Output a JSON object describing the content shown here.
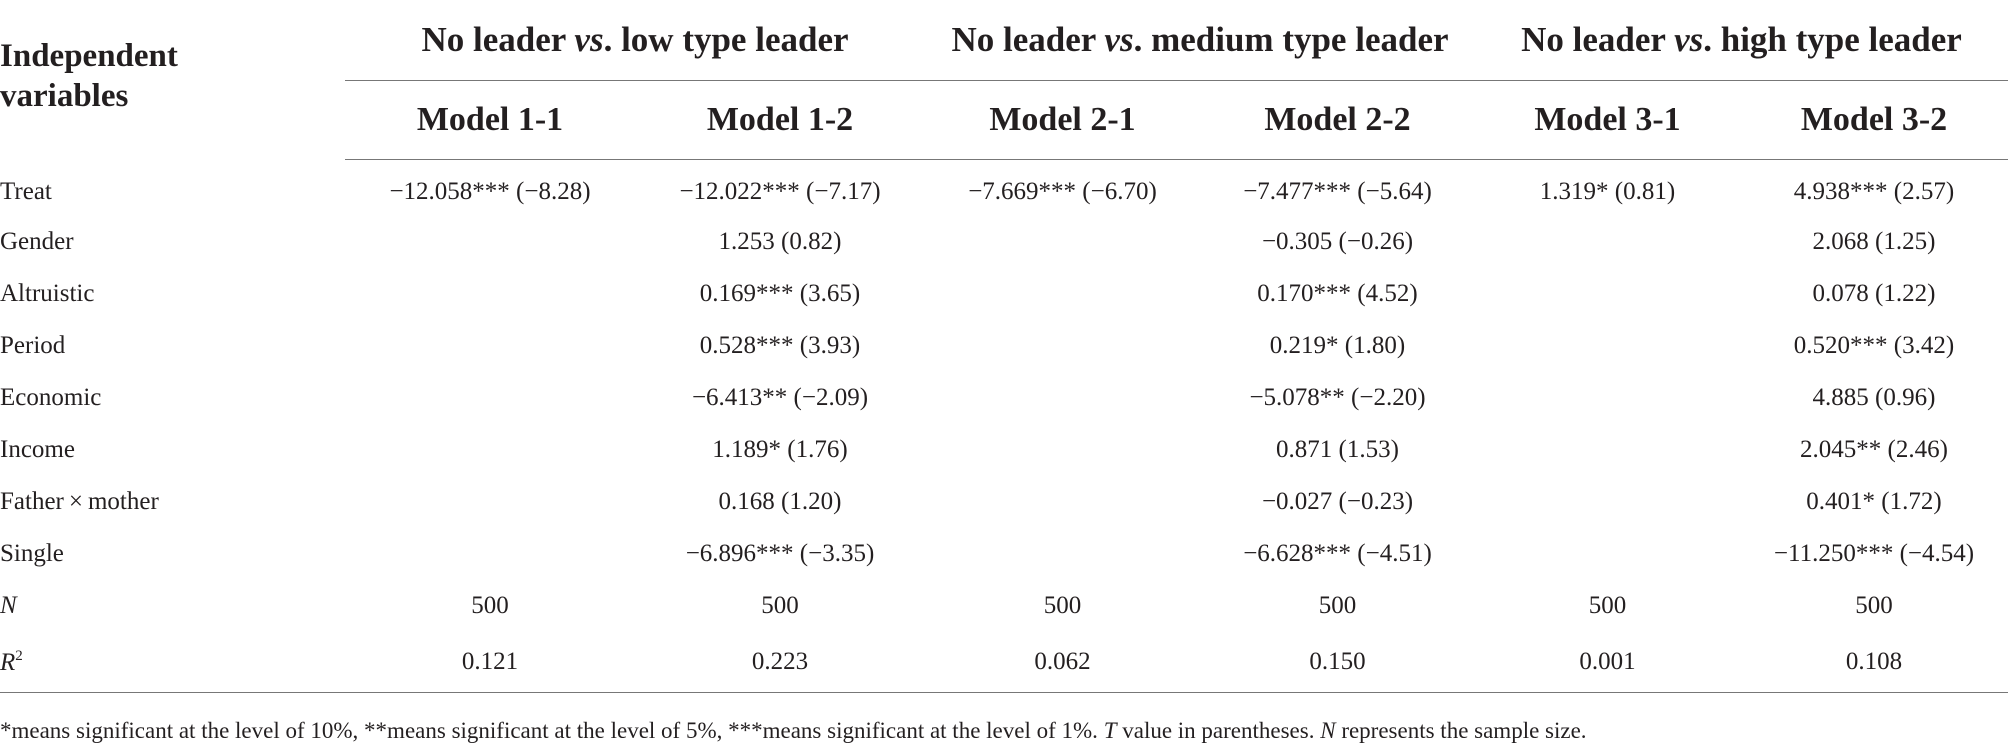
{
  "table": {
    "iv_header_line1": "Independent",
    "iv_header_line2": "variables",
    "groups": [
      {
        "pre": "No leader ",
        "vs": "vs",
        "post": ". low type leader"
      },
      {
        "pre": "No leader ",
        "vs": "vs",
        "post": ". medium type leader"
      },
      {
        "pre": "No leader ",
        "vs": "vs",
        "post": ". high type leader"
      }
    ],
    "models": [
      "Model 1-1",
      "Model 1-2",
      "Model 2-1",
      "Model 2-2",
      "Model 3-1",
      "Model 3-2"
    ],
    "rows": [
      {
        "label": "Treat",
        "cells": [
          "−12.058*** (−8.28)",
          "−12.022*** (−7.17)",
          "−7.669*** (−6.70)",
          "−7.477*** (−5.64)",
          "1.319* (0.81)",
          "4.938*** (2.57)"
        ]
      },
      {
        "label": "Gender",
        "cells": [
          "",
          "1.253 (0.82)",
          "",
          "−0.305 (−0.26)",
          "",
          "2.068 (1.25)"
        ]
      },
      {
        "label": "Altruistic",
        "cells": [
          "",
          "0.169*** (3.65)",
          "",
          "0.170*** (4.52)",
          "",
          "0.078 (1.22)"
        ]
      },
      {
        "label": "Period",
        "cells": [
          "",
          "0.528*** (3.93)",
          "",
          "0.219* (1.80)",
          "",
          "0.520*** (3.42)"
        ]
      },
      {
        "label": "Economic",
        "cells": [
          "",
          "−6.413** (−2.09)",
          "",
          "−5.078** (−2.20)",
          "",
          "4.885 (0.96)"
        ]
      },
      {
        "label": "Income",
        "cells": [
          "",
          "1.189* (1.76)",
          "",
          "0.871 (1.53)",
          "",
          "2.045** (2.46)"
        ]
      },
      {
        "label": "Father × mother",
        "cells": [
          "",
          "0.168 (1.20)",
          "",
          "−0.027 (−0.23)",
          "",
          "0.401* (1.72)"
        ]
      },
      {
        "label": "Single",
        "cells": [
          "",
          "−6.896*** (−3.35)",
          "",
          "−6.628*** (−4.51)",
          "",
          "−11.250*** (−4.54)"
        ]
      }
    ],
    "n_row": {
      "label": "N",
      "cells": [
        "500",
        "500",
        "500",
        "500",
        "500",
        "500"
      ]
    },
    "r2_row": {
      "label": "R",
      "label_sup": "2",
      "cells": [
        "0.121",
        "0.223",
        "0.062",
        "0.150",
        "0.001",
        "0.108"
      ]
    }
  },
  "footnote": {
    "part1": "*means significant at the level of 10%, **means significant at the level of 5%, ***means significant at the level of 1%. ",
    "t": "T",
    "part2": " value in parentheses. ",
    "n": "N",
    "part3": " represents the sample size."
  }
}
